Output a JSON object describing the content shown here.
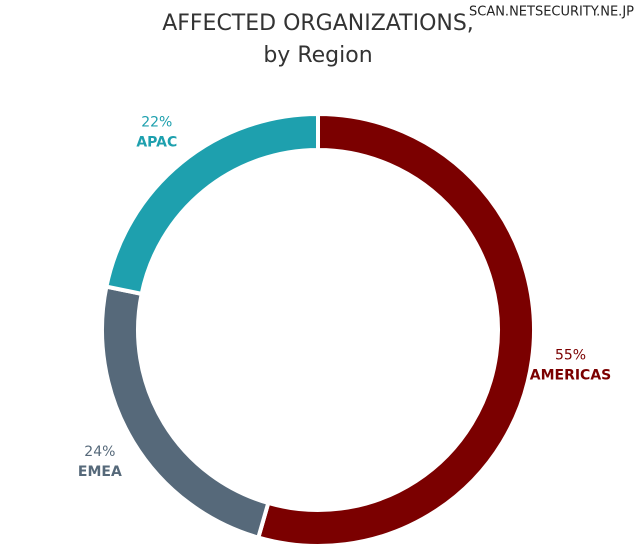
{
  "chart_data": {
    "type": "pie",
    "title": "AFFECTED ORGANIZATIONS,",
    "subtitle": "by Region",
    "watermark": "SCAN.NETSECURITY.NE.JP",
    "categories": [
      "AMERICAS",
      "EMEA",
      "APAC"
    ],
    "values": [
      55,
      24,
      22
    ],
    "value_labels": [
      "55%",
      "24%",
      "22%"
    ],
    "colors": [
      "#7b0000",
      "#56697a",
      "#1ea0ae"
    ],
    "donut": true
  }
}
